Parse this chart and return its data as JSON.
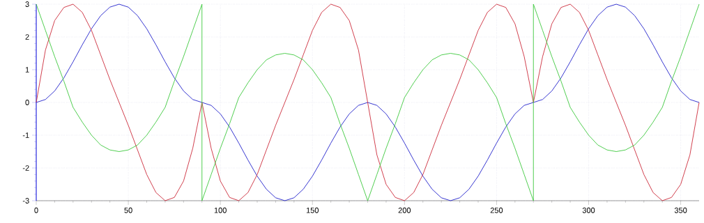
{
  "chart_data": {
    "type": "line",
    "xlim": [
      0,
      360
    ],
    "ylim": [
      -3,
      3
    ],
    "xticks": [
      0,
      50,
      100,
      150,
      200,
      250,
      300,
      350
    ],
    "yticks": [
      -3,
      -2,
      -1,
      0,
      1,
      2,
      3
    ],
    "grid": true,
    "series": [
      {
        "color": "#2222cc",
        "x": [
          0,
          5,
          10,
          15,
          20,
          25,
          30,
          35,
          40,
          45,
          50,
          55,
          60,
          65,
          70,
          75,
          80,
          85,
          90,
          95,
          100,
          105,
          110,
          115,
          120,
          125,
          130,
          135,
          140,
          145,
          150,
          155,
          160,
          165,
          170,
          175,
          180,
          185,
          190,
          195,
          200,
          205,
          210,
          215,
          220,
          225,
          230,
          235,
          240,
          245,
          250,
          255,
          260,
          265,
          270,
          275,
          280,
          285,
          290,
          295,
          300,
          305,
          310,
          315,
          320,
          325,
          330,
          335,
          340,
          345,
          350,
          355,
          360
        ],
        "values": [
          0,
          0.09,
          0.35,
          0.75,
          1.24,
          1.76,
          2.25,
          2.65,
          2.91,
          3,
          2.91,
          2.65,
          2.25,
          1.76,
          1.24,
          0.75,
          0.35,
          0.09,
          0,
          -0.09,
          -0.35,
          -0.75,
          -1.24,
          -1.76,
          -2.25,
          -2.65,
          -2.91,
          -3,
          -2.91,
          -2.65,
          -2.25,
          -1.76,
          -1.24,
          -0.75,
          -0.35,
          -0.09,
          0,
          -0.09,
          -0.35,
          -0.75,
          -1.24,
          -1.76,
          -2.25,
          -2.65,
          -2.91,
          -3,
          -2.91,
          -2.65,
          -2.25,
          -1.76,
          -1.24,
          -0.75,
          -0.35,
          -0.09,
          0,
          0.09,
          0.35,
          0.75,
          1.24,
          1.76,
          2.25,
          2.65,
          2.91,
          3,
          2.91,
          2.65,
          2.25,
          1.76,
          1.24,
          0.75,
          0.35,
          0.09,
          0
        ]
      },
      {
        "color": "#cc2a3a",
        "x": [
          0,
          5,
          10,
          15,
          20,
          25,
          30,
          35,
          40,
          45,
          50,
          55,
          60,
          65,
          70,
          75,
          80,
          85,
          90,
          95,
          100,
          105,
          110,
          115,
          120,
          125,
          130,
          135,
          140,
          145,
          150,
          155,
          160,
          165,
          170,
          175,
          180,
          185,
          190,
          195,
          200,
          205,
          210,
          215,
          220,
          225,
          230,
          235,
          240,
          245,
          250,
          255,
          260,
          265,
          270,
          275,
          280,
          285,
          290,
          295,
          300,
          305,
          310,
          315,
          320,
          325,
          330,
          335,
          340,
          345,
          350,
          355,
          360
        ],
        "values": [
          0,
          1.6,
          2.5,
          2.9,
          3.0,
          2.75,
          2.2,
          1.45,
          0.7,
          0,
          -0.7,
          -1.45,
          -2.2,
          -2.75,
          -3.0,
          -2.9,
          -2.4,
          -1.4,
          0,
          -1.4,
          -2.4,
          -2.9,
          -3.0,
          -2.75,
          -2.2,
          -1.45,
          -0.7,
          0,
          0.7,
          1.45,
          2.2,
          2.75,
          3.0,
          2.9,
          2.5,
          1.6,
          0,
          -1.6,
          -2.5,
          -2.9,
          -3.0,
          -2.75,
          -2.2,
          -1.45,
          -0.7,
          0,
          0.7,
          1.45,
          2.2,
          2.75,
          3.0,
          2.9,
          2.4,
          1.4,
          0,
          1.4,
          2.4,
          2.9,
          3.0,
          2.75,
          2.2,
          1.45,
          0.7,
          0,
          -0.7,
          -1.45,
          -2.2,
          -2.75,
          -3.0,
          -2.9,
          -2.5,
          -1.6,
          0
        ]
      },
      {
        "color": "#3cc83c",
        "x": [
          0,
          5,
          10,
          15,
          20,
          25,
          30,
          35,
          40,
          45,
          50,
          55,
          60,
          65,
          70,
          75,
          80,
          85,
          90,
          90,
          95,
          100,
          105,
          110,
          115,
          120,
          125,
          130,
          135,
          140,
          145,
          150,
          155,
          160,
          165,
          170,
          175,
          180,
          185,
          190,
          195,
          200,
          205,
          210,
          215,
          220,
          225,
          230,
          235,
          240,
          245,
          250,
          255,
          260,
          265,
          270,
          270,
          275,
          280,
          285,
          290,
          295,
          300,
          305,
          310,
          315,
          320,
          325,
          330,
          335,
          340,
          345,
          350,
          355,
          360
        ],
        "values": [
          3,
          2.2,
          1.4,
          0.65,
          -0.15,
          -0.6,
          -1.0,
          -1.3,
          -1.45,
          -1.5,
          -1.45,
          -1.3,
          -1.0,
          -0.6,
          -0.15,
          0.65,
          1.4,
          2.2,
          3,
          -3,
          -2.2,
          -1.4,
          -0.65,
          0.15,
          0.6,
          1.0,
          1.3,
          1.45,
          1.5,
          1.45,
          1.3,
          1.0,
          0.6,
          0.15,
          -0.65,
          -1.4,
          -2.2,
          -3,
          -2.2,
          -1.4,
          -0.65,
          0.15,
          0.6,
          1.0,
          1.3,
          1.45,
          1.5,
          1.45,
          1.3,
          1.0,
          0.6,
          0.15,
          -0.65,
          -1.4,
          -2.2,
          -3,
          3,
          2.2,
          1.4,
          0.65,
          -0.15,
          -0.6,
          -1.0,
          -1.3,
          -1.45,
          -1.5,
          -1.45,
          -1.3,
          -1.0,
          -0.6,
          -0.15,
          0.65,
          1.4,
          2.2,
          3
        ]
      }
    ]
  }
}
